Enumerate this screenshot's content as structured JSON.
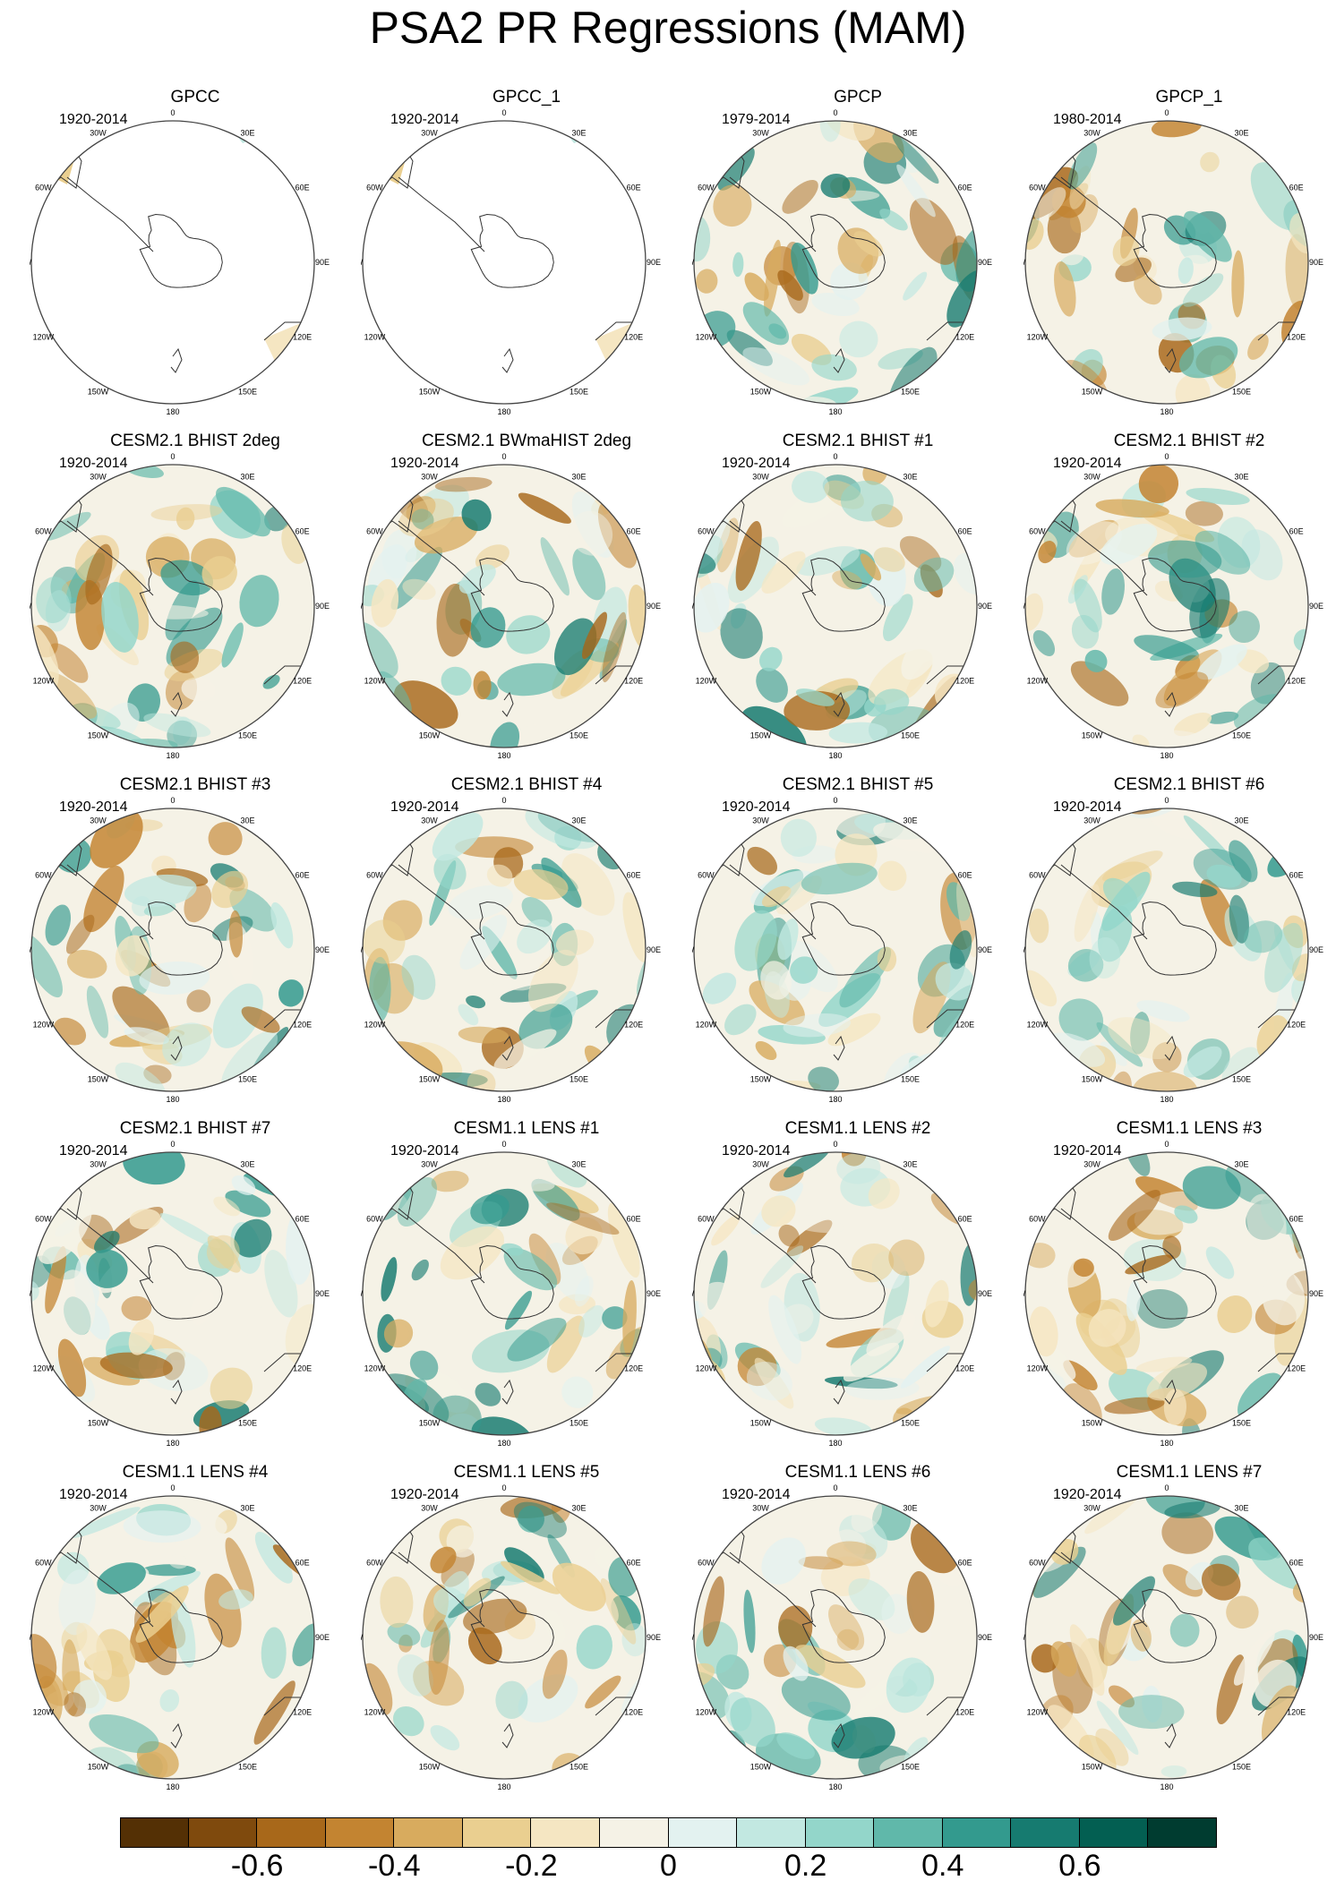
{
  "title": "PSA2 PR Regressions (MAM)",
  "map_labels": {
    "longitudes": [
      "0",
      "30E",
      "60E",
      "90E",
      "120E",
      "150E",
      "180",
      "150W",
      "120W",
      "90W",
      "60W",
      "30W"
    ]
  },
  "panels": [
    {
      "title": "GPCC",
      "period": "1920-2014",
      "masked": true
    },
    {
      "title": "GPCC_1",
      "period": "1920-2014",
      "masked": true
    },
    {
      "title": "GPCP",
      "period": "1979-2014",
      "masked": false
    },
    {
      "title": "GPCP_1",
      "period": "1980-2014",
      "masked": false
    },
    {
      "title": "CESM2.1 BHIST 2deg",
      "period": "1920-2014",
      "masked": false
    },
    {
      "title": "CESM2.1 BWmaHIST 2deg",
      "period": "1920-2014",
      "masked": false
    },
    {
      "title": "CESM2.1 BHIST #1",
      "period": "1920-2014",
      "masked": false
    },
    {
      "title": "CESM2.1 BHIST #2",
      "period": "1920-2014",
      "masked": false
    },
    {
      "title": "CESM2.1 BHIST #3",
      "period": "1920-2014",
      "masked": false
    },
    {
      "title": "CESM2.1 BHIST #4",
      "period": "1920-2014",
      "masked": false
    },
    {
      "title": "CESM2.1 BHIST #5",
      "period": "1920-2014",
      "masked": false
    },
    {
      "title": "CESM2.1 BHIST #6",
      "period": "1920-2014",
      "masked": false
    },
    {
      "title": "CESM2.1 BHIST #7",
      "period": "1920-2014",
      "masked": false
    },
    {
      "title": "CESM1.1 LENS #1",
      "period": "1920-2014",
      "masked": false
    },
    {
      "title": "CESM1.1 LENS #2",
      "period": "1920-2014",
      "masked": false
    },
    {
      "title": "CESM1.1 LENS #3",
      "period": "1920-2014",
      "masked": false
    },
    {
      "title": "CESM1.1 LENS #4",
      "period": "1920-2014",
      "masked": false
    },
    {
      "title": "CESM1.1 LENS #5",
      "period": "1920-2014",
      "masked": false
    },
    {
      "title": "CESM1.1 LENS #6",
      "period": "1920-2014",
      "masked": false
    },
    {
      "title": "CESM1.1 LENS #7",
      "period": "1920-2014",
      "masked": false
    }
  ],
  "colorbar": {
    "colors": [
      "#543005",
      "#7f4a0d",
      "#a8681a",
      "#c38431",
      "#d8ab5e",
      "#eacf90",
      "#f5e6c2",
      "#f5f2e6",
      "#e3f2f0",
      "#c2e8e1",
      "#93d6ca",
      "#60b8aa",
      "#339a8e",
      "#167b70",
      "#035f52",
      "#003c30"
    ],
    "labels": [
      {
        "text": "-0.6",
        "boundary": 2
      },
      {
        "text": "-0.4",
        "boundary": 4
      },
      {
        "text": "-0.2",
        "boundary": 6
      },
      {
        "text": "0",
        "boundary": 8
      },
      {
        "text": "0.2",
        "boundary": 10
      },
      {
        "text": "0.4",
        "boundary": 12
      },
      {
        "text": "0.6",
        "boundary": 14
      }
    ]
  }
}
